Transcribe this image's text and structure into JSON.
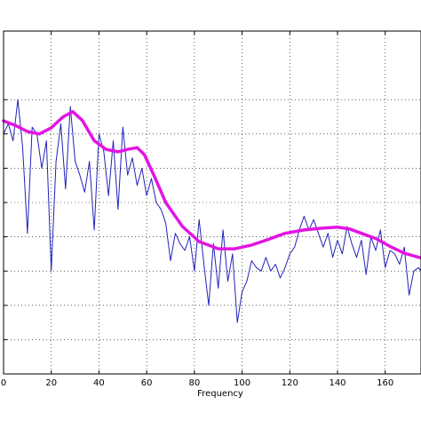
{
  "chart_data": {
    "type": "line",
    "title": "",
    "xlabel": "Frequency",
    "ylabel": "",
    "xlim": [
      0,
      175
    ],
    "ylim": [
      0,
      1
    ],
    "grid": true,
    "x_ticks": [
      0,
      20,
      40,
      60,
      80,
      100,
      120,
      140,
      160
    ],
    "x_tick_labels": [
      "0",
      "20",
      "40",
      "60",
      "80",
      "100",
      "120",
      "140",
      "160"
    ],
    "y_ticks": [
      0.1,
      0.2,
      0.3,
      0.4,
      0.5,
      0.6,
      0.7,
      0.8
    ],
    "series": [
      {
        "color": "#2222bb",
        "style": "thin",
        "x": [
          0,
          2,
          4,
          6,
          8,
          10,
          12,
          14,
          16,
          18,
          20,
          22,
          24,
          26,
          28,
          30,
          32,
          34,
          36,
          38,
          40,
          42,
          44,
          46,
          48,
          50,
          52,
          54,
          56,
          58,
          60,
          62,
          64,
          66,
          68,
          70,
          72,
          74,
          76,
          78,
          80,
          82,
          84,
          86,
          88,
          90,
          92,
          94,
          96,
          98,
          100,
          102,
          104,
          106,
          108,
          110,
          112,
          114,
          116,
          118,
          120,
          122,
          124,
          126,
          128,
          130,
          132,
          134,
          136,
          138,
          140,
          142,
          144,
          146,
          148,
          150,
          152,
          154,
          156,
          158,
          160,
          162,
          164,
          166,
          168,
          170,
          172,
          174,
          175
        ],
        "y": [
          0.7,
          0.73,
          0.68,
          0.8,
          0.66,
          0.41,
          0.72,
          0.7,
          0.6,
          0.68,
          0.3,
          0.62,
          0.73,
          0.54,
          0.78,
          0.62,
          0.58,
          0.53,
          0.62,
          0.42,
          0.7,
          0.65,
          0.52,
          0.68,
          0.48,
          0.72,
          0.58,
          0.63,
          0.55,
          0.6,
          0.52,
          0.57,
          0.5,
          0.48,
          0.44,
          0.33,
          0.41,
          0.38,
          0.36,
          0.4,
          0.3,
          0.45,
          0.32,
          0.2,
          0.38,
          0.25,
          0.42,
          0.27,
          0.35,
          0.15,
          0.24,
          0.27,
          0.33,
          0.31,
          0.3,
          0.34,
          0.3,
          0.32,
          0.28,
          0.31,
          0.35,
          0.37,
          0.42,
          0.46,
          0.42,
          0.45,
          0.41,
          0.37,
          0.41,
          0.34,
          0.39,
          0.35,
          0.43,
          0.38,
          0.34,
          0.39,
          0.29,
          0.4,
          0.36,
          0.42,
          0.31,
          0.36,
          0.35,
          0.32,
          0.37,
          0.23,
          0.3,
          0.31,
          0.3
        ]
      },
      {
        "color": "#e314e3",
        "style": "thick",
        "x": [
          0,
          5,
          10,
          15,
          20,
          25,
          29,
          33,
          38,
          43,
          48,
          52,
          56,
          59,
          63,
          68,
          75,
          82,
          90,
          97,
          104,
          110,
          118,
          126,
          133,
          140,
          145,
          150,
          156,
          162,
          168,
          175
        ],
        "y": [
          0.738,
          0.725,
          0.707,
          0.7,
          0.718,
          0.75,
          0.765,
          0.74,
          0.68,
          0.655,
          0.648,
          0.655,
          0.66,
          0.64,
          0.58,
          0.5,
          0.43,
          0.386,
          0.365,
          0.365,
          0.376,
          0.39,
          0.41,
          0.42,
          0.425,
          0.428,
          0.423,
          0.41,
          0.395,
          0.372,
          0.352,
          0.338
        ]
      }
    ]
  }
}
